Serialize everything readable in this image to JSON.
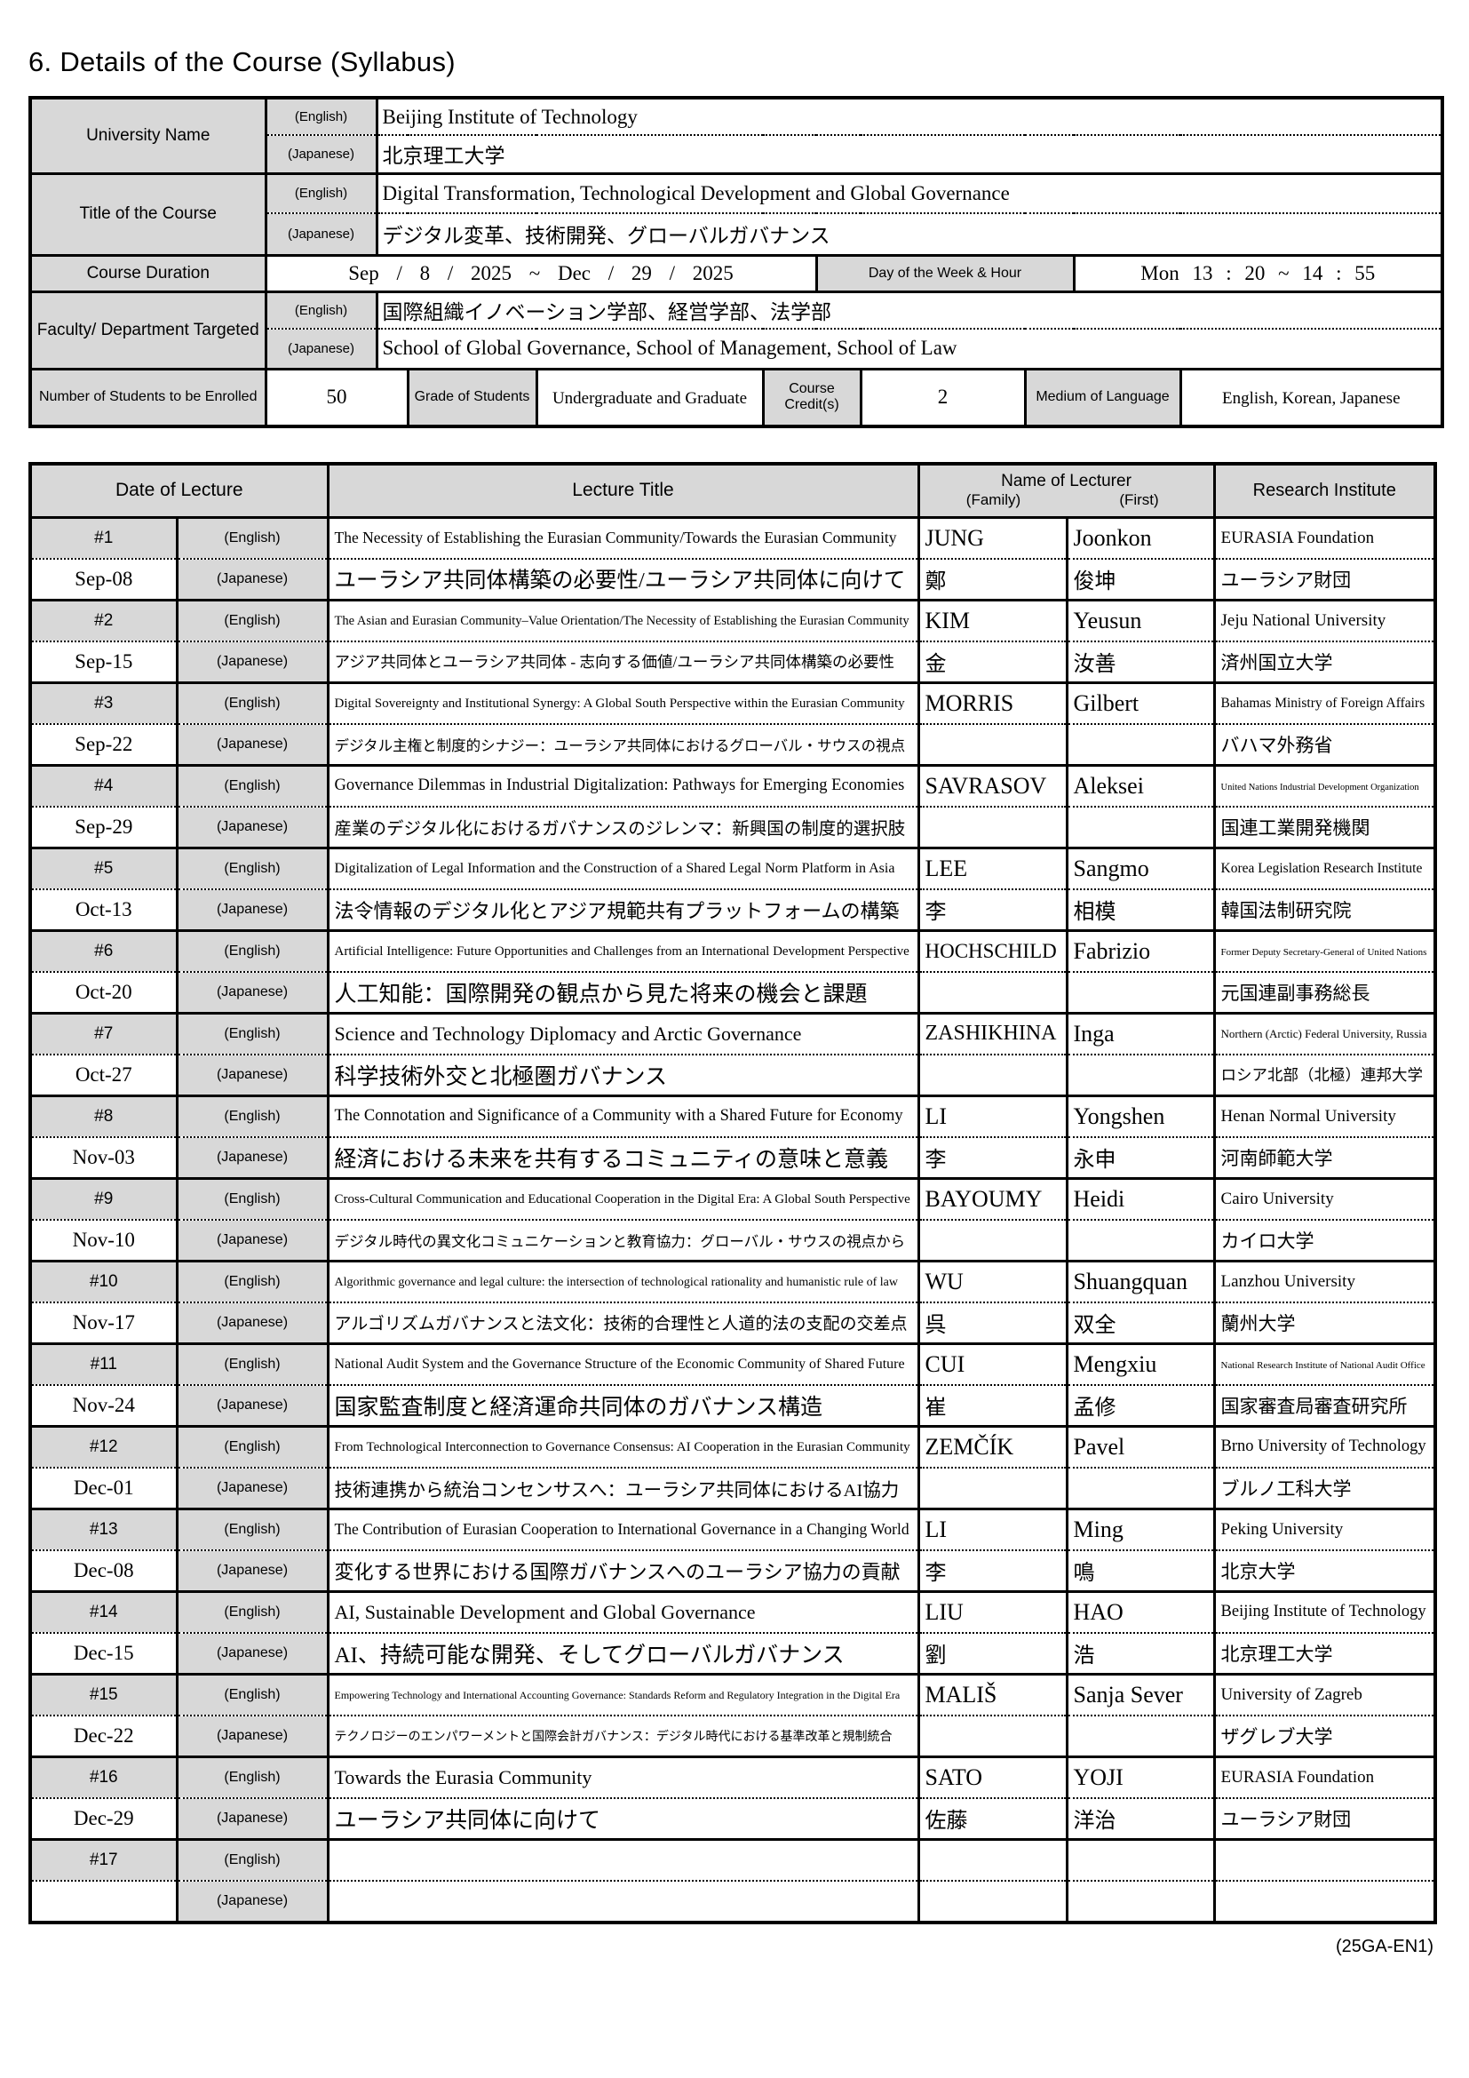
{
  "page": {
    "heading": "6. Details of the Course (Syllabus)",
    "footer_code": "(25GA-EN1)"
  },
  "colors": {
    "header_fill": "#d8d8d8",
    "border": "#000000"
  },
  "tags": {
    "en": "(English)",
    "ja": "(Japanese)"
  },
  "course_info": {
    "university": {
      "label": "University Name",
      "en": "Beijing Institute of Technology",
      "ja": "北京理工大学"
    },
    "course_title": {
      "label": "Title of the Course",
      "en": "Digital Transformation, Technological Development and Global Governance",
      "ja": "デジタル変革、技術開発、グローバルガバナンス"
    },
    "duration": {
      "label": "Course Duration",
      "value": "Sep / 8 / 2025 ~ Dec / 29 / 2025",
      "day_label": "Day of the Week & Hour",
      "day_value": "Mon 13 : 20 ~ 14 : 55"
    },
    "faculty": {
      "label": "Faculty/ Department Targeted",
      "en": "国際組織イノベーション学部、経営学部、法学部",
      "ja": "School of Global Governance, School of Management, School of Law"
    },
    "students": {
      "label": "Number of Students to be Enrolled",
      "value": "50",
      "grade_label": "Grade of Students",
      "grade_value": "Undergraduate and Graduate",
      "credit_label": "Course Credit(s)",
      "credit_value": "2",
      "medium_label": "Medium of Language",
      "medium_value": "English, Korean, Japanese"
    }
  },
  "schedule": {
    "headers": {
      "date": "Date of Lecture",
      "title": "Lecture Title",
      "lecturer": "Name of Lecturer",
      "family": "(Family)",
      "first": "(First)",
      "institute": "Research Institute"
    },
    "lectures": [
      {
        "no": "#1",
        "date": "Sep-08",
        "title_en": "The Necessity of Establishing the Eurasian Community/Towards the Eurasian Community",
        "title_ja": "ユーラシア共同体構築の必要性/ユーラシア共同体に向けて",
        "family_en": "JUNG",
        "first_en": "Joonkon",
        "family_ja": "鄭",
        "first_ja": "俊坤",
        "inst_en": "EURASIA Foundation",
        "inst_ja": "ユーラシア財団"
      },
      {
        "no": "#2",
        "date": "Sep-15",
        "title_en": "The Asian and Eurasian Community–Value Orientation/The Necessity of Establishing the Eurasian Community",
        "title_ja": "アジア共同体とユーラシア共同体 - 志向する価値/ユーラシア共同体構築の必要性",
        "family_en": "KIM",
        "first_en": "Yeusun",
        "family_ja": "金",
        "first_ja": "汝善",
        "inst_en": "Jeju National University",
        "inst_ja": "済州国立大学"
      },
      {
        "no": "#3",
        "date": "Sep-22",
        "title_en": "Digital Sovereignty and Institutional Synergy: A Global South Perspective within the Eurasian Community",
        "title_ja": "デジタル主権と制度的シナジー：ユーラシア共同体におけるグローバル・サウスの視点",
        "family_en": "MORRIS",
        "first_en": "Gilbert",
        "family_ja": "",
        "first_ja": "",
        "inst_en": "Bahamas Ministry of Foreign Affairs",
        "inst_ja": "バハマ外務省"
      },
      {
        "no": "#4",
        "date": "Sep-29",
        "title_en": "Governance Dilemmas in Industrial Digitalization: Pathways for Emerging Economies",
        "title_ja": "産業のデジタル化におけるガバナンスのジレンマ：新興国の制度的選択肢",
        "family_en": "SAVRASOV",
        "first_en": "Aleksei",
        "family_ja": "",
        "first_ja": "",
        "inst_en": "United Nations Industrial Development Organization",
        "inst_ja": "国連工業開発機関"
      },
      {
        "no": "#5",
        "date": "Oct-13",
        "title_en": "Digitalization of Legal Information and the Construction of a Shared Legal Norm Platform in Asia",
        "title_ja": "法令情報のデジタル化とアジア規範共有プラットフォームの構築",
        "family_en": "LEE",
        "first_en": "Sangmo",
        "family_ja": "李",
        "first_ja": "相模",
        "inst_en": "Korea Legislation Research Institute",
        "inst_ja": "韓国法制研究院"
      },
      {
        "no": "#6",
        "date": "Oct-20",
        "title_en": "Artificial Intelligence: Future Opportunities and Challenges from an International Development Perspective",
        "title_ja": "人工知能：国際開発の観点から見た将来の機会と課題",
        "family_en": "HOCHSCHILD",
        "first_en": "Fabrizio",
        "family_ja": "",
        "first_ja": "",
        "inst_en": "Former Deputy Secretary-General of United Nations",
        "inst_ja": "元国連副事務総長"
      },
      {
        "no": "#7",
        "date": "Oct-27",
        "title_en": "Science and Technology Diplomacy and Arctic Governance",
        "title_ja": "科学技術外交と北極圏ガバナンス",
        "family_en": "ZASHIKHINA",
        "first_en": "Inga",
        "family_ja": "",
        "first_ja": "",
        "inst_en": "Northern (Arctic) Federal University, Russia",
        "inst_ja": "ロシア北部（北極）連邦大学"
      },
      {
        "no": "#8",
        "date": "Nov-03",
        "title_en": "The Connotation and Significance of a Community with a Shared Future for Economy",
        "title_ja": "経済における未来を共有するコミュニティの意味と意義",
        "family_en": "LI",
        "first_en": "Yongshen",
        "family_ja": "李",
        "first_ja": "永申",
        "inst_en": "Henan Normal University",
        "inst_ja": "河南師範大学"
      },
      {
        "no": "#9",
        "date": "Nov-10",
        "title_en": "Cross-Cultural Communication and Educational Cooperation in the Digital Era: A Global South Perspective",
        "title_ja": "デジタル時代の異文化コミュニケーションと教育協力：グローバル・サウスの視点から",
        "family_en": "BAYOUMY",
        "first_en": "Heidi",
        "family_ja": "",
        "first_ja": "",
        "inst_en": "Cairo University",
        "inst_ja": "カイロ大学"
      },
      {
        "no": "#10",
        "date": "Nov-17",
        "title_en": "Algorithmic governance and legal culture: the intersection of technological rationality and humanistic rule of law",
        "title_ja": "アルゴリズムガバナンスと法文化：技術的合理性と人道的法の支配の交差点",
        "family_en": "WU",
        "first_en": "Shuangquan",
        "family_ja": "呉",
        "first_ja": "双全",
        "inst_en": "Lanzhou University",
        "inst_ja": "蘭州大学"
      },
      {
        "no": "#11",
        "date": "Nov-24",
        "title_en": "National Audit System and the Governance Structure of the Economic Community of Shared Future",
        "title_ja": "国家監査制度と経済運命共同体のガバナンス構造",
        "family_en": "CUI",
        "first_en": "Mengxiu",
        "family_ja": "崔",
        "first_ja": "孟修",
        "inst_en": "National Research Institute of National Audit Office",
        "inst_ja": "国家審査局審査研究所"
      },
      {
        "no": "#12",
        "date": "Dec-01",
        "title_en": "From Technological Interconnection to Governance Consensus: AI Cooperation in the Eurasian Community",
        "title_ja": "技術連携から統治コンセンサスへ：ユーラシア共同体におけるAI協力",
        "family_en": "ZEMČÍK",
        "first_en": "Pavel",
        "family_ja": "",
        "first_ja": "",
        "inst_en": "Brno University of Technology",
        "inst_ja": "ブルノ工科大学"
      },
      {
        "no": "#13",
        "date": "Dec-08",
        "title_en": "The Contribution of Eurasian Cooperation to International Governance in a Changing World",
        "title_ja": "変化する世界における国際ガバナンスへのユーラシア協力の貢献",
        "family_en": "LI",
        "first_en": "Ming",
        "family_ja": "李",
        "first_ja": "鳴",
        "inst_en": "Peking University",
        "inst_ja": "北京大学"
      },
      {
        "no": "#14",
        "date": "Dec-15",
        "title_en": "AI, Sustainable Development and Global Governance",
        "title_ja": "AI、持続可能な開発、そしてグローバルガバナンス",
        "family_en": "LIU",
        "first_en": "HAO",
        "family_ja": "劉",
        "first_ja": "浩",
        "inst_en": "Beijing Institute of Technology",
        "inst_ja": "北京理工大学"
      },
      {
        "no": "#15",
        "date": "Dec-22",
        "title_en": "Empowering Technology and International Accounting Governance: Standards Reform and Regulatory Integration in the Digital Era",
        "title_ja": "テクノロジーのエンパワーメントと国際会計ガバナンス：デジタル時代における基準改革と規制統合",
        "family_en": "MALIŠ",
        "first_en": "Sanja Sever",
        "family_ja": "",
        "first_ja": "",
        "inst_en": "University of Zagreb",
        "inst_ja": "ザグレブ大学"
      },
      {
        "no": "#16",
        "date": "Dec-29",
        "title_en": "Towards the Eurasia Community",
        "title_ja": "ユーラシア共同体に向けて",
        "family_en": "SATO",
        "first_en": "YOJI",
        "family_ja": "佐藤",
        "first_ja": "洋治",
        "inst_en": "EURASIA Foundation",
        "inst_ja": "ユーラシア財団"
      },
      {
        "no": "#17",
        "date": "",
        "title_en": "",
        "title_ja": "",
        "family_en": "",
        "first_en": "",
        "family_ja": "",
        "first_ja": "",
        "inst_en": "",
        "inst_ja": ""
      }
    ]
  }
}
